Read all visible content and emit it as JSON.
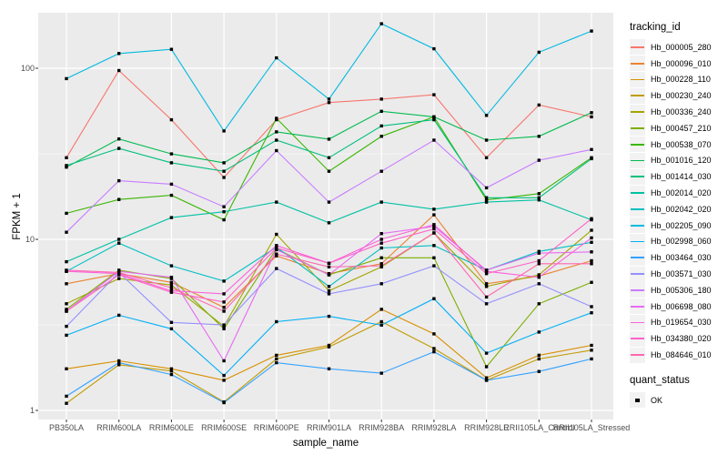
{
  "figure": {
    "y_axis": {
      "label": "FPKM + 1",
      "tick_labels": [
        "100",
        "10",
        "1"
      ],
      "tick_values": [
        100,
        10,
        1
      ]
    },
    "x_axis": {
      "label": "sample_name"
    },
    "legend": {
      "tracking_title": "tracking_id",
      "quant_title": "quant_status",
      "quant_items": [
        {
          "label": "OK",
          "key": "black-square"
        }
      ]
    }
  },
  "chart_data": {
    "type": "line",
    "title": "",
    "xlabel": "sample_name",
    "ylabel": "FPKM + 1",
    "y_scale": "log10",
    "ylim": [
      1,
      210
    ],
    "y_major_breaks": [
      1,
      10,
      100
    ],
    "y_minor_breaks": [
      3.162,
      31.62
    ],
    "grid": true,
    "legend_position": "right",
    "panel_bg": "#EBEBEB",
    "grid_color": "#FFFFFF",
    "marker": "black-square",
    "categories": [
      "PB350LA",
      "RRIM600LA",
      "RRIM600LE",
      "RRIM600SE",
      "RRIM600PE",
      "RRIM901LA",
      "RRIM928BA",
      "RRIM928LA",
      "RRIM928LE",
      "RRII105LA_Control",
      "RRII105LA_Stressed"
    ],
    "series": [
      {
        "name": "Hb_000005_280",
        "color": "#F8766D",
        "values": [
          30,
          97,
          50,
          23,
          50,
          63,
          66,
          70,
          30,
          61,
          52
        ]
      },
      {
        "name": "Hb_000096_010",
        "color": "#EA8331",
        "values": [
          5.5,
          6.3,
          5.6,
          4.0,
          8.0,
          6.3,
          7.2,
          13.9,
          5.5,
          6.1,
          7.5
        ]
      },
      {
        "name": "Hb_000228_110",
        "color": "#D89000",
        "values": [
          1.75,
          1.95,
          1.75,
          1.5,
          2.1,
          2.4,
          3.9,
          2.8,
          1.55,
          2.1,
          2.4
        ]
      },
      {
        "name": "Hb_000230_240",
        "color": "#C09B00",
        "values": [
          1.1,
          1.85,
          1.7,
          1.12,
          2.0,
          2.35,
          3.3,
          2.3,
          1.5,
          2.0,
          2.25
        ]
      },
      {
        "name": "Hb_000336_240",
        "color": "#A3A500",
        "values": [
          4.2,
          5.9,
          5.4,
          3.1,
          10.7,
          5.0,
          6.9,
          10.9,
          5.3,
          6.2,
          11.3
        ]
      },
      {
        "name": "Hb_000457_210",
        "color": "#7CAE00",
        "values": [
          3.9,
          6.6,
          5.9,
          3.0,
          8.8,
          6.2,
          7.8,
          7.8,
          1.8,
          4.2,
          5.6
        ]
      },
      {
        "name": "Hb_000538_070",
        "color": "#39B600",
        "values": [
          14.2,
          17.1,
          18.1,
          13.0,
          51,
          25,
          40,
          52,
          17,
          18.5,
          30
        ]
      },
      {
        "name": "Hb_001016_120",
        "color": "#00BB4E",
        "values": [
          26.4,
          38.6,
          31.6,
          28,
          42.5,
          38.5,
          56,
          52,
          38,
          40,
          55
        ]
      },
      {
        "name": "Hb_001414_030",
        "color": "#00BF7D",
        "values": [
          27,
          34,
          28,
          25,
          38,
          30,
          46,
          50,
          17.5,
          17.5,
          29.6
        ]
      },
      {
        "name": "Hb_002014_020",
        "color": "#00C1A3",
        "values": [
          7.4,
          10,
          13.4,
          14.5,
          16.5,
          12.5,
          16.5,
          15,
          16.5,
          17,
          13
        ]
      },
      {
        "name": "Hb_002042_020",
        "color": "#00BFC4",
        "values": [
          6.5,
          9.5,
          7.0,
          5.7,
          9.0,
          5.3,
          8.9,
          9.2,
          6.6,
          8.5,
          9.6
        ]
      },
      {
        "name": "Hb_002205_090",
        "color": "#00BAE0",
        "values": [
          87,
          122,
          129,
          43,
          115,
          66,
          182,
          130,
          53,
          124,
          165
        ]
      },
      {
        "name": "Hb_002998_060",
        "color": "#00B0F6",
        "values": [
          2.75,
          3.6,
          3.0,
          1.6,
          3.3,
          3.55,
          3.15,
          4.5,
          2.16,
          2.87,
          3.72
        ]
      },
      {
        "name": "Hb_003464_030",
        "color": "#35A2FF",
        "values": [
          1.21,
          1.9,
          1.62,
          1.11,
          1.9,
          1.75,
          1.65,
          2.2,
          1.5,
          1.69,
          2.0
        ]
      },
      {
        "name": "Hb_003571_030",
        "color": "#9590FF",
        "values": [
          3.1,
          6.4,
          3.27,
          3.16,
          6.75,
          4.8,
          5.5,
          7.0,
          4.2,
          5.5,
          4.04
        ]
      },
      {
        "name": "Hb_005306_180",
        "color": "#C77CFF",
        "values": [
          11,
          22,
          21,
          15.5,
          33,
          16.5,
          25,
          38,
          20,
          29,
          33.5
        ]
      },
      {
        "name": "Hb_006698_080",
        "color": "#E76BF3",
        "values": [
          3.8,
          6.5,
          6.0,
          1.95,
          8.7,
          6.2,
          10.8,
          11.9,
          6.6,
          8.3,
          8.45
        ]
      },
      {
        "name": "Hb_019654_030",
        "color": "#FA62DB",
        "values": [
          6.5,
          6.3,
          5.0,
          4.8,
          9.2,
          7.25,
          10,
          12.2,
          6.5,
          6.0,
          10.2
        ]
      },
      {
        "name": "Hb_034380_020",
        "color": "#FF61C9",
        "values": [
          3.8,
          6.2,
          4.9,
          4.3,
          8.9,
          7.25,
          9.5,
          11.5,
          6.3,
          7.5,
          13.2
        ]
      },
      {
        "name": "Hb_084646_010",
        "color": "#FF67B0",
        "values": [
          6.6,
          6.4,
          5.2,
          3.8,
          8.2,
          6.9,
          7.0,
          10.9,
          4.6,
          7.2,
          7.2
        ]
      }
    ]
  },
  "colors": {
    "background": "#FFFFFF",
    "panel_bg": "#EBEBEB",
    "gridline": "#FFFFFF",
    "axis_text": "#4D4D4D",
    "tick_mark": "#333333",
    "legend_key_bg": "#F2F2F2",
    "marker": "#000000"
  }
}
